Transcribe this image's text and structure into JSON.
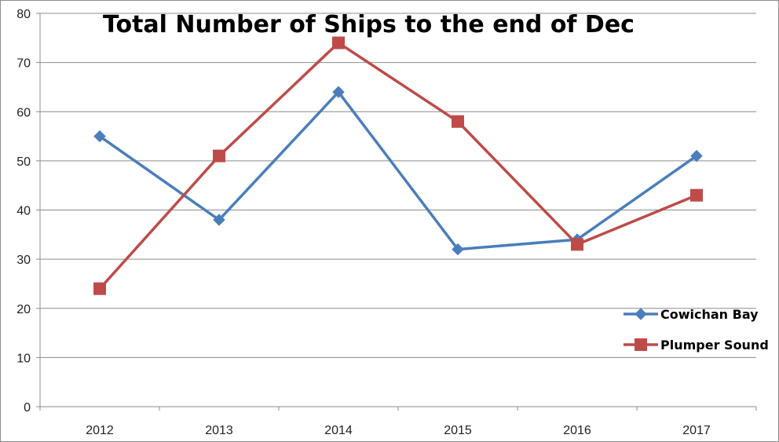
{
  "chart_data": {
    "type": "line",
    "title": "Total Number of Ships to the end of Dec",
    "categories": [
      "2012",
      "2013",
      "2014",
      "2015",
      "2016",
      "2017"
    ],
    "ylim": [
      0,
      80
    ],
    "yticks": [
      0,
      10,
      20,
      30,
      40,
      50,
      60,
      70,
      80
    ],
    "grid": true,
    "legend_position": "right",
    "series": [
      {
        "name": "Cowichan Bay",
        "values": [
          55,
          38,
          64,
          32,
          34,
          51
        ],
        "color": "#4a7ebb",
        "marker": "diamond"
      },
      {
        "name": "Plumper Sound",
        "values": [
          24,
          51,
          74,
          58,
          33,
          43
        ],
        "color": "#be4b48",
        "marker": "square"
      }
    ]
  }
}
